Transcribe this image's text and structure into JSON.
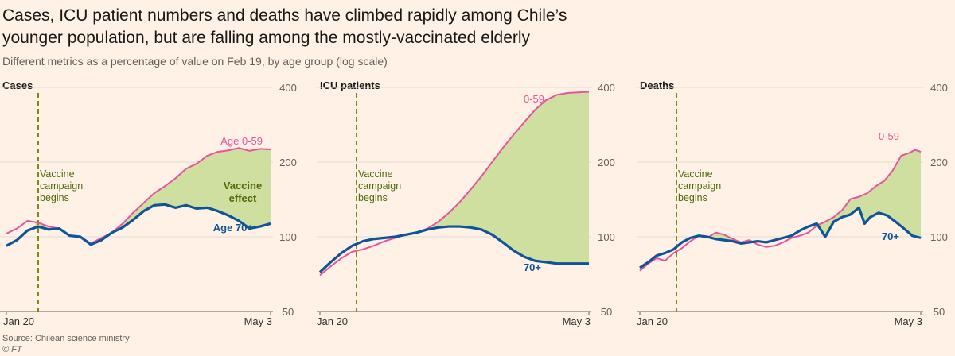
{
  "header": {
    "title": "Cases, ICU patient numbers and deaths have climbed rapidly among Chile’s younger population, but are falling among the mostly-vaccinated elderly",
    "subtitle": "Different metrics as a percentage of value on Feb 19, by age group (log scale)"
  },
  "footer": {
    "source": "Source: Chilean science ministry",
    "copyright": "© FT"
  },
  "colors": {
    "background": "#fff1e5",
    "young": "#e8549b",
    "old": "#0f5499",
    "fill": "#cfdf9f",
    "vaccine_line": "#7a8c0e",
    "annotation_green": "#4e6b0a"
  },
  "chart_data": [
    {
      "type": "line",
      "title": "Cases",
      "y_scale": "log",
      "ylim": [
        50,
        400
      ],
      "yticks": [
        50,
        100,
        200,
        400
      ],
      "x_tick_labels": [
        "Jan 20",
        "May 3"
      ],
      "vaccine_annotation": "Vaccine campaign begins",
      "vaccine_start_x": 0.11,
      "gap_label": "Vaccine effect",
      "series": [
        {
          "name": "Age 0-59",
          "points": [
            [
              0.0,
              103
            ],
            [
              0.04,
              108
            ],
            [
              0.08,
              116
            ],
            [
              0.12,
              114
            ],
            [
              0.16,
              110
            ],
            [
              0.2,
              108
            ],
            [
              0.24,
              101
            ],
            [
              0.28,
              100
            ],
            [
              0.32,
              94
            ],
            [
              0.36,
              99
            ],
            [
              0.4,
              104
            ],
            [
              0.44,
              113
            ],
            [
              0.48,
              125
            ],
            [
              0.52,
              137
            ],
            [
              0.56,
              150
            ],
            [
              0.6,
              160
            ],
            [
              0.64,
              172
            ],
            [
              0.68,
              188
            ],
            [
              0.72,
              197
            ],
            [
              0.76,
              212
            ],
            [
              0.8,
              220
            ],
            [
              0.84,
              223
            ],
            [
              0.88,
              228
            ],
            [
              0.92,
              222
            ],
            [
              0.96,
              226
            ],
            [
              1.0,
              225
            ]
          ]
        },
        {
          "name": "Age 70+",
          "points": [
            [
              0.0,
              92
            ],
            [
              0.04,
              97
            ],
            [
              0.08,
              106
            ],
            [
              0.12,
              110
            ],
            [
              0.16,
              107
            ],
            [
              0.2,
              108
            ],
            [
              0.24,
              101
            ],
            [
              0.28,
              100
            ],
            [
              0.32,
              93
            ],
            [
              0.36,
              97
            ],
            [
              0.4,
              104
            ],
            [
              0.44,
              109
            ],
            [
              0.48,
              117
            ],
            [
              0.52,
              127
            ],
            [
              0.56,
              134
            ],
            [
              0.6,
              135
            ],
            [
              0.64,
              131
            ],
            [
              0.68,
              134
            ],
            [
              0.72,
              130
            ],
            [
              0.76,
              131
            ],
            [
              0.8,
              127
            ],
            [
              0.84,
              122
            ],
            [
              0.88,
              116
            ],
            [
              0.92,
              108
            ],
            [
              0.96,
              110
            ],
            [
              1.0,
              113
            ]
          ]
        }
      ]
    },
    {
      "type": "line",
      "title": "ICU patients",
      "y_scale": "log",
      "ylim": [
        50,
        400
      ],
      "yticks": [
        50,
        100,
        200,
        400
      ],
      "x_tick_labels": [
        "Jan 20",
        "May 3"
      ],
      "vaccine_annotation": "Vaccine campaign begins",
      "vaccine_start_x": 0.14,
      "series": [
        {
          "name": "0-59",
          "points": [
            [
              0.0,
              70
            ],
            [
              0.04,
              76
            ],
            [
              0.08,
              82
            ],
            [
              0.12,
              87
            ],
            [
              0.16,
              89
            ],
            [
              0.2,
              92
            ],
            [
              0.24,
              96
            ],
            [
              0.28,
              99
            ],
            [
              0.32,
              102
            ],
            [
              0.36,
              104
            ],
            [
              0.4,
              108
            ],
            [
              0.44,
              115
            ],
            [
              0.48,
              125
            ],
            [
              0.52,
              138
            ],
            [
              0.56,
              155
            ],
            [
              0.6,
              175
            ],
            [
              0.64,
              200
            ],
            [
              0.68,
              228
            ],
            [
              0.72,
              258
            ],
            [
              0.76,
              290
            ],
            [
              0.8,
              325
            ],
            [
              0.84,
              355
            ],
            [
              0.88,
              373
            ],
            [
              0.92,
              380
            ],
            [
              0.96,
              382
            ],
            [
              1.0,
              384
            ]
          ]
        },
        {
          "name": "70+",
          "points": [
            [
              0.0,
              72
            ],
            [
              0.04,
              79
            ],
            [
              0.08,
              86
            ],
            [
              0.12,
              92
            ],
            [
              0.16,
              96
            ],
            [
              0.2,
              98
            ],
            [
              0.24,
              99
            ],
            [
              0.28,
              100
            ],
            [
              0.32,
              102
            ],
            [
              0.36,
              104
            ],
            [
              0.4,
              107
            ],
            [
              0.44,
              109
            ],
            [
              0.48,
              110
            ],
            [
              0.52,
              110
            ],
            [
              0.56,
              109
            ],
            [
              0.6,
              107
            ],
            [
              0.64,
              102
            ],
            [
              0.68,
              95
            ],
            [
              0.72,
              88
            ],
            [
              0.76,
              83
            ],
            [
              0.8,
              80
            ],
            [
              0.84,
              79
            ],
            [
              0.88,
              78
            ],
            [
              0.92,
              78
            ],
            [
              0.96,
              78
            ],
            [
              1.0,
              78
            ]
          ]
        }
      ]
    },
    {
      "type": "line",
      "title": "Deaths",
      "y_scale": "log",
      "ylim": [
        50,
        400
      ],
      "yticks": [
        50,
        100,
        200,
        400
      ],
      "x_tick_labels": [
        "Jan 20",
        "May 3"
      ],
      "vaccine_annotation": "Vaccine campaign begins",
      "vaccine_start_x": 0.13,
      "series": [
        {
          "name": "0-59",
          "points": [
            [
              0.0,
              73
            ],
            [
              0.03,
              78
            ],
            [
              0.06,
              82
            ],
            [
              0.09,
              80
            ],
            [
              0.12,
              86
            ],
            [
              0.15,
              90
            ],
            [
              0.18,
              96
            ],
            [
              0.21,
              101
            ],
            [
              0.24,
              99
            ],
            [
              0.27,
              104
            ],
            [
              0.3,
              102
            ],
            [
              0.33,
              98
            ],
            [
              0.36,
              95
            ],
            [
              0.39,
              97
            ],
            [
              0.42,
              93
            ],
            [
              0.45,
              91
            ],
            [
              0.48,
              92
            ],
            [
              0.51,
              95
            ],
            [
              0.54,
              99
            ],
            [
              0.57,
              101
            ],
            [
              0.6,
              104
            ],
            [
              0.63,
              111
            ],
            [
              0.66,
              115
            ],
            [
              0.69,
              120
            ],
            [
              0.72,
              128
            ],
            [
              0.75,
              142
            ],
            [
              0.78,
              145
            ],
            [
              0.81,
              150
            ],
            [
              0.84,
              160
            ],
            [
              0.87,
              168
            ],
            [
              0.9,
              185
            ],
            [
              0.93,
              212
            ],
            [
              0.96,
              218
            ],
            [
              0.98,
              224
            ],
            [
              1.0,
              220
            ]
          ]
        },
        {
          "name": "70+",
          "points": [
            [
              0.0,
              75
            ],
            [
              0.03,
              79
            ],
            [
              0.06,
              84
            ],
            [
              0.09,
              86
            ],
            [
              0.12,
              89
            ],
            [
              0.15,
              95
            ],
            [
              0.18,
              99
            ],
            [
              0.21,
              101
            ],
            [
              0.24,
              100
            ],
            [
              0.27,
              98
            ],
            [
              0.3,
              97
            ],
            [
              0.33,
              96
            ],
            [
              0.36,
              94
            ],
            [
              0.39,
              95
            ],
            [
              0.42,
              96
            ],
            [
              0.45,
              95
            ],
            [
              0.48,
              97
            ],
            [
              0.51,
              99
            ],
            [
              0.54,
              101
            ],
            [
              0.57,
              106
            ],
            [
              0.6,
              110
            ],
            [
              0.63,
              113
            ],
            [
              0.66,
              100
            ],
            [
              0.69,
              115
            ],
            [
              0.72,
              120
            ],
            [
              0.75,
              123
            ],
            [
              0.78,
              131
            ],
            [
              0.8,
              113
            ],
            [
              0.82,
              120
            ],
            [
              0.85,
              125
            ],
            [
              0.88,
              122
            ],
            [
              0.91,
              115
            ],
            [
              0.94,
              108
            ],
            [
              0.97,
              101
            ],
            [
              1.0,
              99
            ]
          ]
        }
      ]
    }
  ]
}
